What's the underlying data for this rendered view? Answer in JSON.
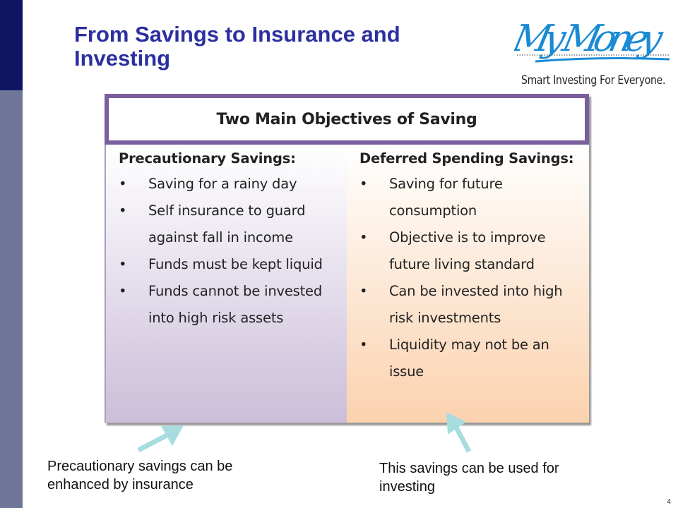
{
  "slide": {
    "title": "From Savings to Insurance and Investing",
    "page_number": "4",
    "logo": {
      "wordmark": "My Money",
      "tagline": "Smart Investing For Everyone.",
      "color": "#1a8ad4"
    },
    "colors": {
      "title": "#2c2fa0",
      "sidebar_top": "#0f1563",
      "sidebar_bottom": "#6f7699",
      "panel_border": "#7b5e9e",
      "arrow": "#a8dde0"
    }
  },
  "panel": {
    "heading": "Two Main Objectives of Saving",
    "left": {
      "heading": "Precautionary Savings:",
      "items": [
        "Saving for a rainy day",
        "Self insurance to guard against fall in income",
        "Funds must be kept liquid",
        "Funds cannot be invested into high risk assets"
      ]
    },
    "right": {
      "heading": "Deferred Spending Savings:",
      "items": [
        "Saving for future consumption",
        "Objective is to improve future living standard",
        "Can be invested into high risk investments",
        "Liquidity may not be an issue"
      ]
    }
  },
  "notes": {
    "left": "Precautionary savings can be enhanced by insurance",
    "right": "This savings can be used for investing"
  }
}
